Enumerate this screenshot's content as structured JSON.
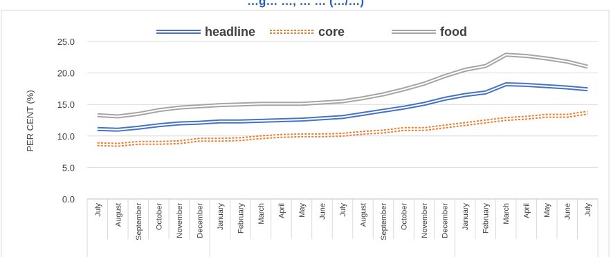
{
  "chart_data": {
    "type": "line",
    "title": "…g… …, … … (…/…)",
    "ylabel": "PER CENT (%)",
    "xlabel": "",
    "ylim": [
      0,
      25
    ],
    "yticks": [
      "0.0",
      "5.0",
      "10.0",
      "15.0",
      "20.0",
      "25.0"
    ],
    "grid": true,
    "legend_position": "top",
    "categories": [
      "July",
      "August",
      "September",
      "October",
      "November",
      "December",
      "January",
      "February",
      "March",
      "April",
      "May",
      "June",
      "July",
      "August",
      "September",
      "October",
      "November",
      "December",
      "January",
      "February",
      "March",
      "April",
      "May",
      "June",
      "July"
    ],
    "series": [
      {
        "name": "headline",
        "color": "#4472c4",
        "style": "double",
        "values": [
          11.1,
          11.0,
          11.3,
          11.7,
          12.0,
          12.1,
          12.3,
          12.3,
          12.4,
          12.5,
          12.6,
          12.8,
          13.0,
          13.5,
          14.0,
          14.5,
          15.1,
          15.9,
          16.5,
          16.9,
          18.2,
          18.1,
          17.9,
          17.7,
          17.4
        ],
        "shared_group": ""
      },
      {
        "name": "core",
        "color": "#ed7d31",
        "style": "dashed-double",
        "values": [
          8.7,
          8.6,
          8.9,
          8.9,
          9.0,
          9.4,
          9.4,
          9.5,
          9.8,
          10.0,
          10.1,
          10.1,
          10.2,
          10.5,
          10.7,
          11.1,
          11.1,
          11.5,
          11.9,
          12.3,
          12.7,
          12.9,
          13.2,
          13.2,
          13.7
        ]
      },
      {
        "name": "food",
        "color": "#a5a5a5",
        "style": "double",
        "values": [
          13.3,
          13.1,
          13.5,
          14.1,
          14.5,
          14.7,
          14.9,
          15.0,
          15.1,
          15.1,
          15.1,
          15.3,
          15.5,
          16.0,
          16.6,
          17.4,
          18.3,
          19.5,
          20.5,
          21.1,
          22.9,
          22.7,
          22.3,
          21.8,
          21.0
        ]
      }
    ]
  }
}
